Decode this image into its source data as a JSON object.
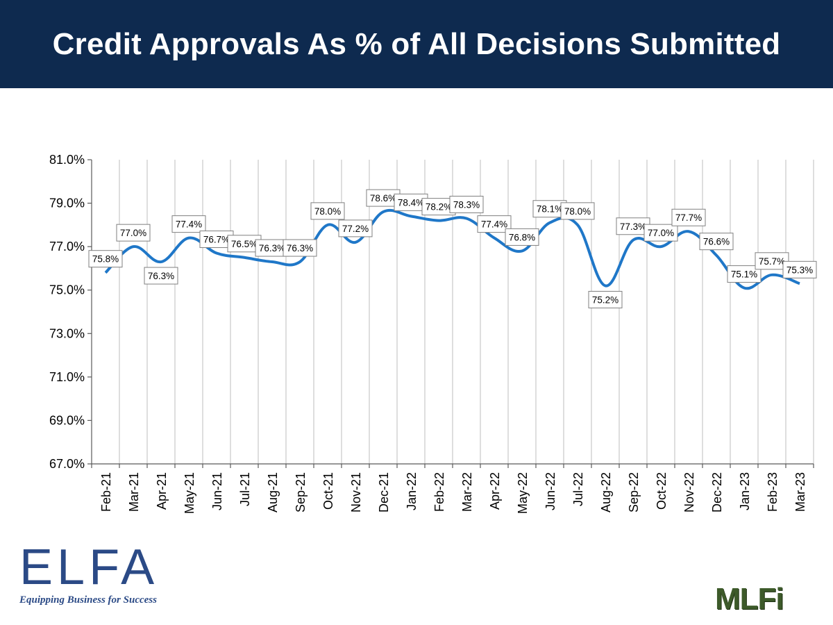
{
  "header": {
    "title": "Credit Approvals As % of All Decisions Submitted"
  },
  "colors": {
    "header_bg": "#0e2a4f",
    "line": "#1f77c8",
    "brand_blue": "#2b4a86",
    "mlfi_green": "#3d5a2a"
  },
  "chart_data": {
    "type": "line",
    "title": "Credit Approvals As % of All Decisions Submitted",
    "xlabel": "",
    "ylabel": "",
    "ylim": [
      67.0,
      81.0
    ],
    "yticks": [
      "81.0%",
      "79.0%",
      "77.0%",
      "75.0%",
      "73.0%",
      "71.0%",
      "69.0%",
      "67.0%"
    ],
    "ytick_values": [
      81,
      79,
      77,
      75,
      73,
      71,
      69,
      67
    ],
    "grid": "vertical",
    "categories": [
      "Feb-21",
      "Mar-21",
      "Apr-21",
      "May-21",
      "Jun-21",
      "Jul-21",
      "Aug-21",
      "Sep-21",
      "Oct-21",
      "Nov-21",
      "Dec-21",
      "Jan-22",
      "Feb-22",
      "Mar-22",
      "Apr-22",
      "May-22",
      "Jun-22",
      "Jul-22",
      "Aug-22",
      "Sep-22",
      "Oct-22",
      "Nov-22",
      "Dec-22",
      "Jan-23",
      "Feb-23",
      "Mar-23"
    ],
    "values": [
      75.8,
      77.0,
      76.3,
      77.4,
      76.7,
      76.5,
      76.3,
      76.3,
      78.0,
      77.2,
      78.6,
      78.4,
      78.2,
      78.3,
      77.4,
      76.8,
      78.1,
      78.0,
      75.2,
      77.3,
      77.0,
      77.7,
      76.6,
      75.1,
      75.7,
      75.3
    ],
    "labels": [
      "75.8%",
      "77.0%",
      "76.3%",
      "77.4%",
      "76.7%",
      "76.5%",
      "76.3%",
      "76.3%",
      "78.0%",
      "77.2%",
      "78.6%",
      "78.4%",
      "78.2%",
      "78.3%",
      "77.4%",
      "76.8%",
      "78.1%",
      "78.0%",
      "75.2%",
      "77.3%",
      "77.0%",
      "77.7%",
      "76.6%",
      "75.1%",
      "75.7%",
      "75.3%"
    ],
    "label_side": [
      "above",
      "above",
      "below",
      "above",
      "above",
      "above",
      "above",
      "above",
      "above",
      "above",
      "above",
      "above",
      "above",
      "above",
      "above",
      "above",
      "above",
      "above",
      "below",
      "above",
      "above",
      "above",
      "above",
      "above",
      "above",
      "above"
    ]
  },
  "footer": {
    "elfa_logo_text": "ELFA",
    "elfa_tagline": "Equipping Business for Success",
    "mlfi_logo_text": "MLFi"
  }
}
